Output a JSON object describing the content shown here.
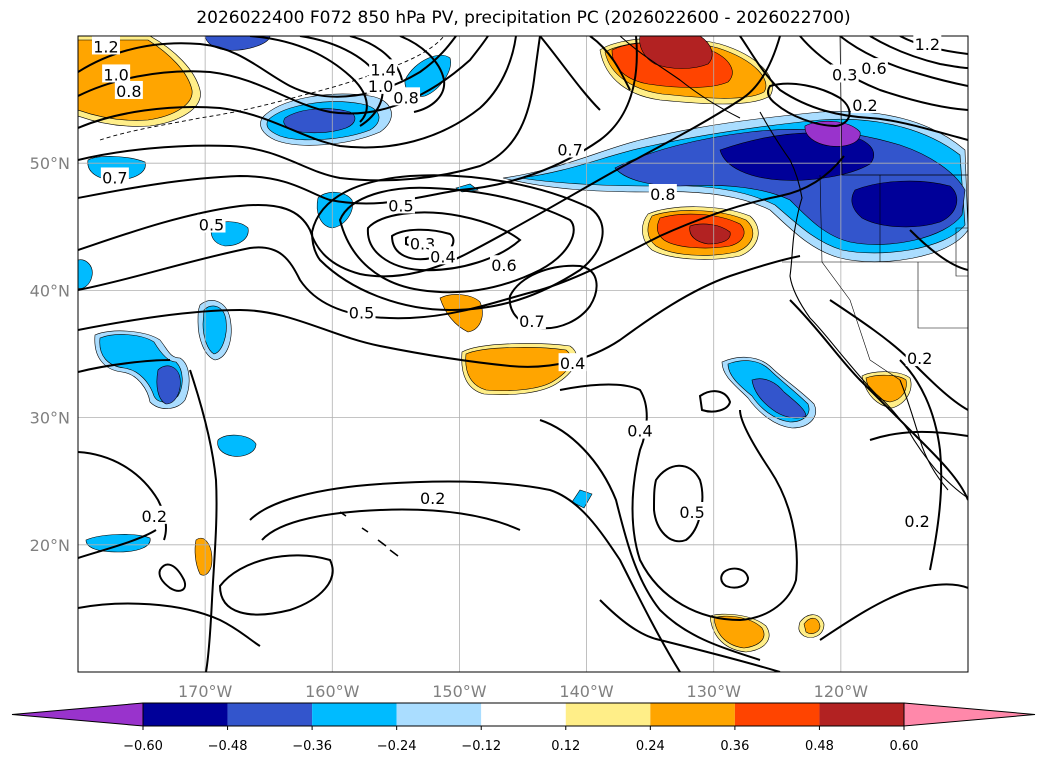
{
  "title": "2026022400 F072 850 hPa PV, precipitation PC (2026022600 - 2026022700)",
  "map": {
    "lon_range": [
      -180,
      -110
    ],
    "lat_range": [
      10,
      60
    ],
    "lon_ticks": [
      {
        "lon": -170,
        "label": "170°W"
      },
      {
        "lon": -160,
        "label": "160°W"
      },
      {
        "lon": -150,
        "label": "150°W"
      },
      {
        "lon": -140,
        "label": "140°W"
      },
      {
        "lon": -130,
        "label": "130°W"
      },
      {
        "lon": -120,
        "label": "120°W"
      }
    ],
    "lat_ticks": [
      {
        "lat": 20,
        "label": "20°N"
      },
      {
        "lat": 30,
        "label": "30°N"
      },
      {
        "lat": 40,
        "label": "40°N"
      },
      {
        "lat": 50,
        "label": "50°N"
      }
    ],
    "gridlines": true
  },
  "colorbar": {
    "levels": [
      "-0.60",
      "-0.48",
      "-0.36",
      "-0.24",
      "-0.12",
      "0.12",
      "0.24",
      "0.36",
      "0.48",
      "0.60"
    ],
    "colors": [
      "#9933cc",
      "#000099",
      "#3355cc",
      "#00bbff",
      "#aaddff",
      "#ffffff",
      "#ffee88",
      "#ffa500",
      "#ff4400",
      "#b22222",
      "#ff88aa"
    ],
    "extend": "both"
  },
  "shading_colors": {
    "lightblue": "#aaddff",
    "cyan": "#00bbff",
    "blue": "#3355cc",
    "navy": "#000099",
    "purple": "#9933cc",
    "yellow": "#ffee88",
    "orange": "#ffa500",
    "red": "#ff4400",
    "darkred": "#b22222"
  },
  "contour_labels": [
    {
      "text": "1.2",
      "lon": -177.8,
      "lat": 59.1
    },
    {
      "text": "1.0",
      "lon": -177.0,
      "lat": 56.9
    },
    {
      "text": "0.8",
      "lon": -176.0,
      "lat": 55.6
    },
    {
      "text": "1.4",
      "lon": -156.0,
      "lat": 57.3
    },
    {
      "text": "1.0",
      "lon": -156.2,
      "lat": 56.0
    },
    {
      "text": "0.8",
      "lon": -154.2,
      "lat": 55.1
    },
    {
      "text": "0.7",
      "lon": -177.1,
      "lat": 48.8
    },
    {
      "text": "0.5",
      "lon": -169.5,
      "lat": 45.1
    },
    {
      "text": "0.5",
      "lon": -154.6,
      "lat": 46.6
    },
    {
      "text": "0.3",
      "lon": -152.9,
      "lat": 43.6
    },
    {
      "text": "0.4",
      "lon": -151.3,
      "lat": 42.6
    },
    {
      "text": "0.6",
      "lon": -146.5,
      "lat": 41.9
    },
    {
      "text": "0.5",
      "lon": -157.7,
      "lat": 38.2
    },
    {
      "text": "0.7",
      "lon": -144.3,
      "lat": 37.5
    },
    {
      "text": "0.4",
      "lon": -141.1,
      "lat": 34.2
    },
    {
      "text": "0.7",
      "lon": -141.3,
      "lat": 51.0
    },
    {
      "text": "0.8",
      "lon": -134.0,
      "lat": 47.5
    },
    {
      "text": "0.3",
      "lon": -119.7,
      "lat": 56.9
    },
    {
      "text": "0.2",
      "lon": -118.1,
      "lat": 54.5
    },
    {
      "text": "0.6",
      "lon": -117.4,
      "lat": 57.4
    },
    {
      "text": "1.2",
      "lon": -113.2,
      "lat": 59.3
    },
    {
      "text": "0.4",
      "lon": -135.8,
      "lat": 28.9
    },
    {
      "text": "0.5",
      "lon": -131.7,
      "lat": 22.5
    },
    {
      "text": "0.2",
      "lon": -174.0,
      "lat": 22.2
    },
    {
      "text": "0.2",
      "lon": -152.1,
      "lat": 23.6
    },
    {
      "text": "0.2",
      "lon": -114.0,
      "lat": 21.8
    },
    {
      "text": "0.2",
      "lon": -113.8,
      "lat": 34.6
    }
  ]
}
